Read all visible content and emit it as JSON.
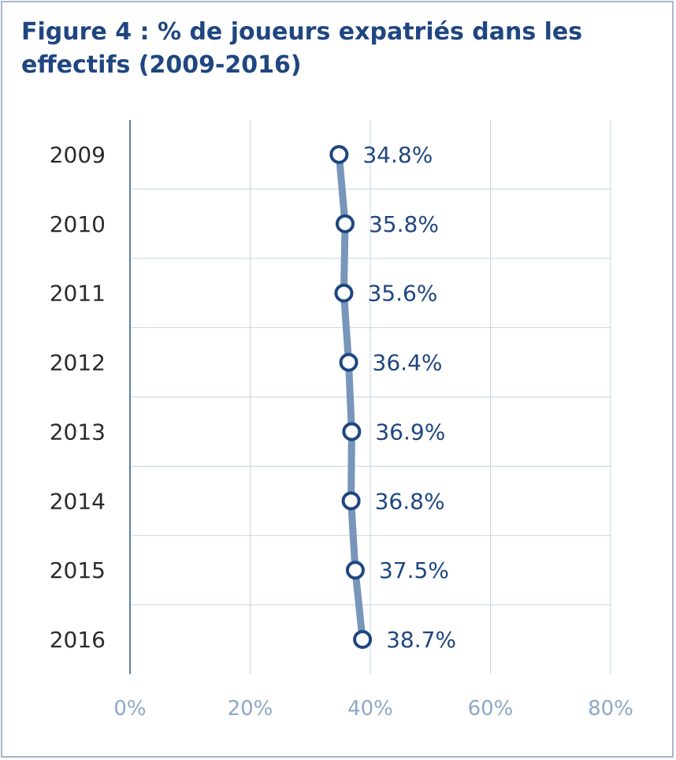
{
  "title": "Figure 4 : % de joueurs expatriés dans les effectifs (2009-2016)",
  "colors": {
    "title": "#1f4680",
    "line": "#7895bb",
    "marker": "#1f4680",
    "grid": "#c8d3e1",
    "axis": "#5f82ad",
    "tick_text": "#8fa8c6"
  },
  "chart_data": {
    "type": "line",
    "orientation": "horizontal",
    "categories": [
      "2009",
      "2010",
      "2011",
      "2012",
      "2013",
      "2014",
      "2015",
      "2016"
    ],
    "values": [
      34.8,
      35.8,
      35.6,
      36.4,
      36.9,
      36.8,
      37.5,
      38.7
    ],
    "value_labels": [
      "34.8%",
      "35.8%",
      "35.6%",
      "36.4%",
      "36.9%",
      "36.8%",
      "37.5%",
      "38.7%"
    ],
    "xlim": [
      0,
      80
    ],
    "xticks": [
      0,
      20,
      40,
      60,
      80
    ],
    "xtick_labels": [
      "0%",
      "20%",
      "40%",
      "60%",
      "80%"
    ],
    "grid": true,
    "legend": "none"
  }
}
